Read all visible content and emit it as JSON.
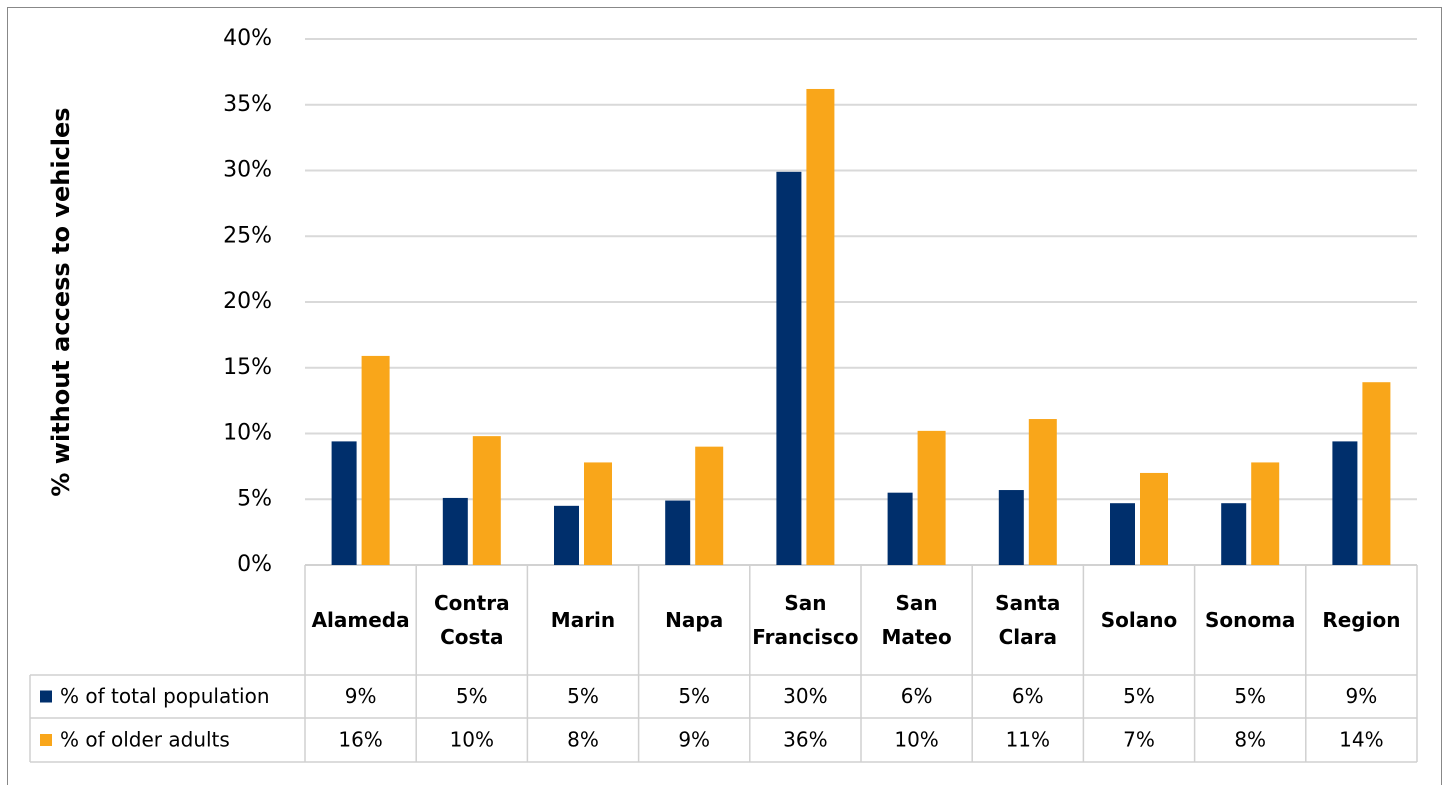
{
  "chart_data": {
    "type": "bar",
    "y_label": "% without access to vehicles",
    "categories": [
      "Alameda",
      "Contra Costa",
      "Marin",
      "Napa",
      "San Francisco",
      "San Mateo",
      "Santa Clara",
      "Solano",
      "Sonoma",
      "Region"
    ],
    "series": [
      {
        "name": "% of total population",
        "color": "#002f6c",
        "values": [
          9.4,
          5.1,
          4.5,
          4.9,
          29.9,
          5.5,
          5.7,
          4.7,
          4.7,
          9.4
        ],
        "value_labels": [
          "9%",
          "5%",
          "5%",
          "5%",
          "30%",
          "6%",
          "6%",
          "5%",
          "5%",
          "9%"
        ]
      },
      {
        "name": "% of older adults",
        "color": "#f9a61a",
        "values": [
          15.9,
          9.8,
          7.8,
          9.0,
          36.2,
          10.2,
          11.1,
          7.0,
          7.8,
          13.9
        ],
        "value_labels": [
          "16%",
          "10%",
          "8%",
          "9%",
          "36%",
          "10%",
          "11%",
          "7%",
          "8%",
          "14%"
        ]
      }
    ],
    "ylim": [
      0,
      40
    ],
    "yticks": [
      {
        "value": 0,
        "label": "0%"
      },
      {
        "value": 5,
        "label": "5%"
      },
      {
        "value": 10,
        "label": "10%"
      },
      {
        "value": 15,
        "label": "15%"
      },
      {
        "value": 20,
        "label": "20%"
      },
      {
        "value": 25,
        "label": "25%"
      },
      {
        "value": 30,
        "label": "30%"
      },
      {
        "value": 35,
        "label": "35%"
      },
      {
        "value": 40,
        "label": "40%"
      }
    ],
    "grid": true
  }
}
